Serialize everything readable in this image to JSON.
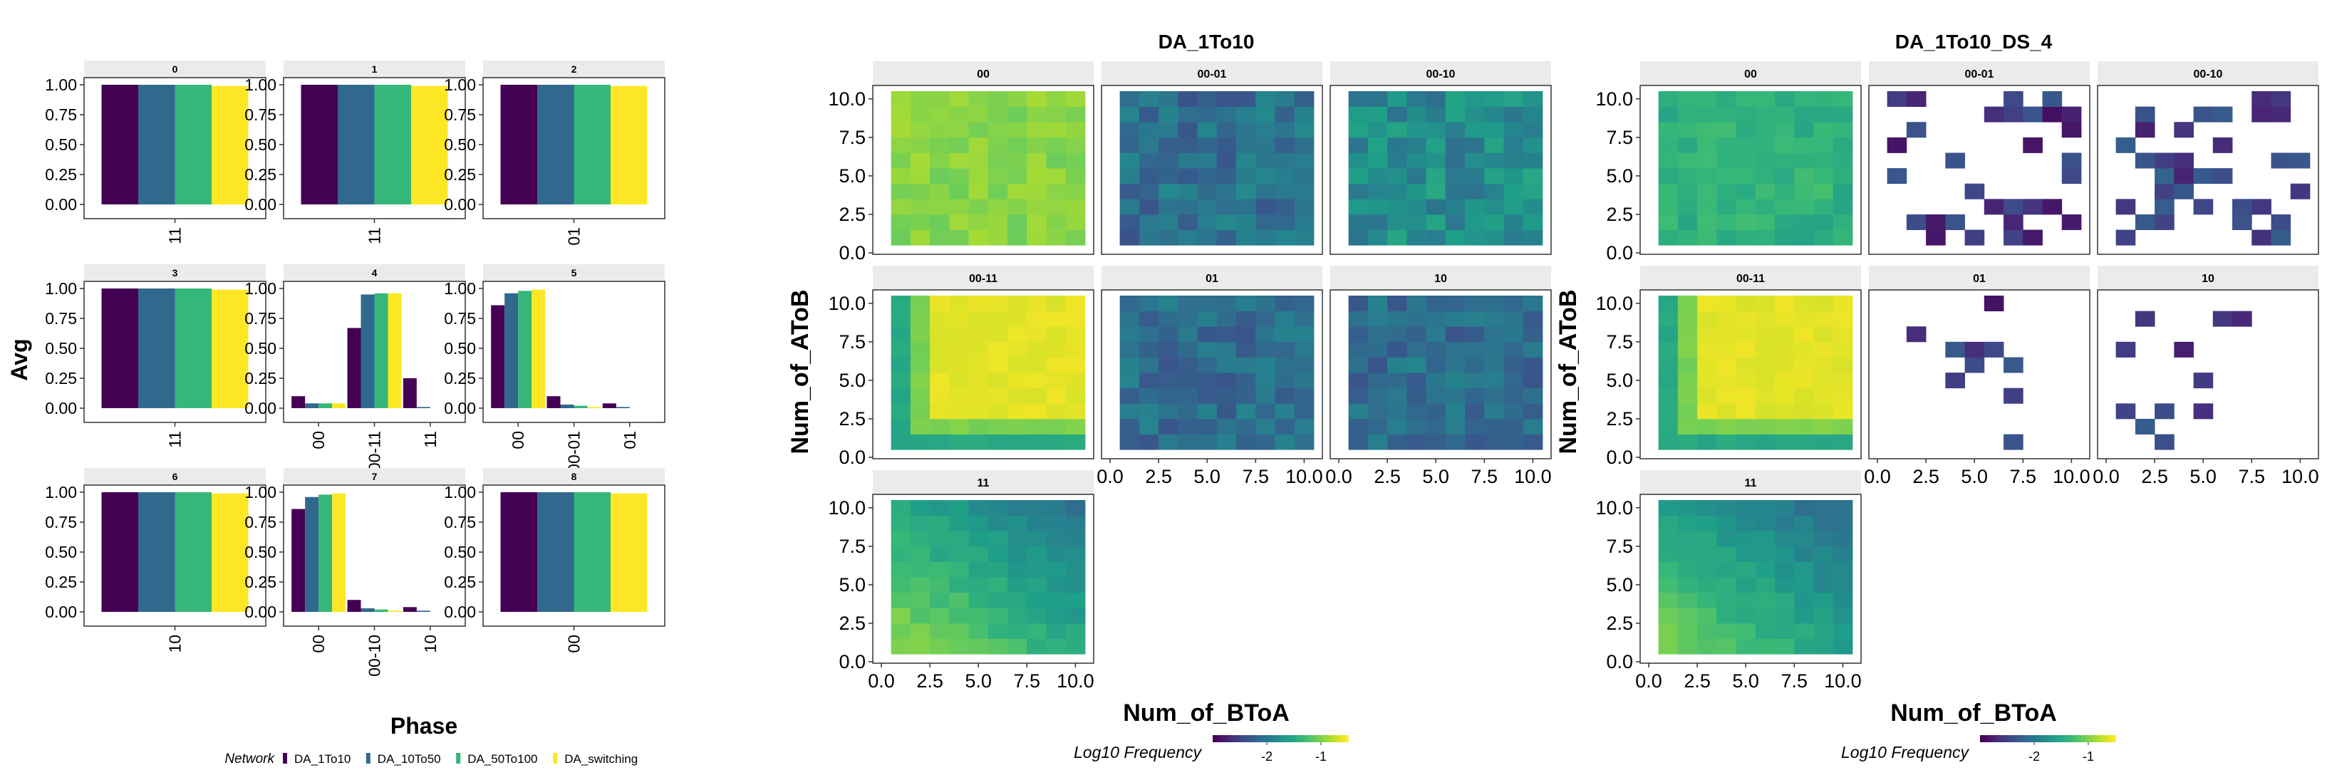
{
  "colors": {
    "DA_1To10": "#440154",
    "DA_10To50": "#31688E",
    "DA_50To100": "#35B779",
    "DA_switching": "#FDE725",
    "strip": "#EBEBEB",
    "panel_border": "#333333"
  },
  "chart_data": [
    {
      "type": "bar",
      "title": "",
      "xlabel": "Phase",
      "ylabel": "Avg",
      "ylim": [
        0,
        1
      ],
      "y_ticks": [
        "0.00",
        "0.25",
        "0.50",
        "0.75",
        "1.00"
      ],
      "legend": {
        "title": "Network",
        "placement": "bottom",
        "entries": [
          "DA_1To10",
          "DA_10To50",
          "DA_50To100",
          "DA_switching"
        ]
      },
      "facets": [
        {
          "label": "0",
          "categories": [
            "11"
          ],
          "series": [
            {
              "name": "DA_1To10",
              "values": [
                1.0
              ]
            },
            {
              "name": "DA_10To50",
              "values": [
                1.0
              ]
            },
            {
              "name": "DA_50To100",
              "values": [
                1.0
              ]
            },
            {
              "name": "DA_switching",
              "values": [
                0.99
              ]
            }
          ]
        },
        {
          "label": "1",
          "categories": [
            "11"
          ],
          "series": [
            {
              "name": "DA_1To10",
              "values": [
                1.0
              ]
            },
            {
              "name": "DA_10To50",
              "values": [
                1.0
              ]
            },
            {
              "name": "DA_50To100",
              "values": [
                1.0
              ]
            },
            {
              "name": "DA_switching",
              "values": [
                0.99
              ]
            }
          ]
        },
        {
          "label": "2",
          "categories": [
            "01"
          ],
          "series": [
            {
              "name": "DA_1To10",
              "values": [
                1.0
              ]
            },
            {
              "name": "DA_10To50",
              "values": [
                1.0
              ]
            },
            {
              "name": "DA_50To100",
              "values": [
                1.0
              ]
            },
            {
              "name": "DA_switching",
              "values": [
                0.99
              ]
            }
          ]
        },
        {
          "label": "3",
          "categories": [
            "11"
          ],
          "series": [
            {
              "name": "DA_1To10",
              "values": [
                1.0
              ]
            },
            {
              "name": "DA_10To50",
              "values": [
                1.0
              ]
            },
            {
              "name": "DA_50To100",
              "values": [
                1.0
              ]
            },
            {
              "name": "DA_switching",
              "values": [
                0.99
              ]
            }
          ]
        },
        {
          "label": "4",
          "categories": [
            "00",
            "00-11",
            "11"
          ],
          "series": [
            {
              "name": "DA_1To10",
              "values": [
                0.1,
                0.67,
                0.25
              ]
            },
            {
              "name": "DA_10To50",
              "values": [
                0.04,
                0.95,
                0.01
              ]
            },
            {
              "name": "DA_50To100",
              "values": [
                0.04,
                0.96,
                0.0
              ]
            },
            {
              "name": "DA_switching",
              "values": [
                0.04,
                0.96,
                0.0
              ]
            }
          ]
        },
        {
          "label": "5",
          "categories": [
            "00",
            "00-01",
            "01"
          ],
          "series": [
            {
              "name": "DA_1To10",
              "values": [
                0.86,
                0.1,
                0.04
              ]
            },
            {
              "name": "DA_10To50",
              "values": [
                0.96,
                0.03,
                0.01
              ]
            },
            {
              "name": "DA_50To100",
              "values": [
                0.98,
                0.02,
                0.0
              ]
            },
            {
              "name": "DA_switching",
              "values": [
                0.99,
                0.01,
                0.0
              ]
            }
          ]
        },
        {
          "label": "6",
          "categories": [
            "10"
          ],
          "series": [
            {
              "name": "DA_1To10",
              "values": [
                1.0
              ]
            },
            {
              "name": "DA_10To50",
              "values": [
                1.0
              ]
            },
            {
              "name": "DA_50To100",
              "values": [
                1.0
              ]
            },
            {
              "name": "DA_switching",
              "values": [
                0.99
              ]
            }
          ]
        },
        {
          "label": "7",
          "categories": [
            "00",
            "00-10",
            "10"
          ],
          "series": [
            {
              "name": "DA_1To10",
              "values": [
                0.86,
                0.1,
                0.04
              ]
            },
            {
              "name": "DA_10To50",
              "values": [
                0.96,
                0.03,
                0.01
              ]
            },
            {
              "name": "DA_50To100",
              "values": [
                0.98,
                0.02,
                0.0
              ]
            },
            {
              "name": "DA_switching",
              "values": [
                0.99,
                0.01,
                0.0
              ]
            }
          ]
        },
        {
          "label": "8",
          "categories": [
            "00"
          ],
          "series": [
            {
              "name": "DA_1To10",
              "values": [
                1.0
              ]
            },
            {
              "name": "DA_10To50",
              "values": [
                1.0
              ]
            },
            {
              "name": "DA_50To100",
              "values": [
                1.0
              ]
            },
            {
              "name": "DA_switching",
              "values": [
                0.99
              ]
            }
          ]
        }
      ]
    },
    {
      "type": "heatmap",
      "title": "DA_1To10",
      "xlabel": "Num_of_BToA",
      "ylabel": "Num_of_AToB",
      "xlim": [
        0,
        10.5
      ],
      "ylim": [
        0,
        10.5
      ],
      "x_ticks": [
        "0.0",
        "2.5",
        "5.0",
        "7.5",
        "10.0"
      ],
      "y_ticks": [
        "0.0",
        "2.5",
        "5.0",
        "7.5",
        "10.0"
      ],
      "grid_cells": "x = 1..10, y = 1..10",
      "colorbar": {
        "title": "Log10 Frequency",
        "ticks": [
          "-2",
          "-1"
        ],
        "range": [
          -3,
          -0.5
        ],
        "palette": "viridis"
      },
      "facets": [
        {
          "label": "00",
          "pattern": "flat",
          "value": -0.95,
          "noise": 0.12
        },
        {
          "label": "00-01",
          "pattern": "flat",
          "value": -2.1,
          "noise": 0.3
        },
        {
          "label": "00-10",
          "pattern": "flat",
          "value": -1.8,
          "noise": 0.3
        },
        {
          "label": "00-11",
          "pattern": "corner-high",
          "value": -0.6,
          "noise": 0.05
        },
        {
          "label": "01",
          "pattern": "flat",
          "value": -2.1,
          "noise": 0.25
        },
        {
          "label": "10",
          "pattern": "flat",
          "value": -2.1,
          "noise": 0.25
        },
        {
          "label": "11",
          "pattern": "corner-low",
          "value": -1.3,
          "noise": 0.1
        }
      ]
    },
    {
      "type": "heatmap",
      "title": "DA_1To10_DS_4",
      "xlabel": "Num_of_BToA",
      "ylabel": "Num_of_AToB",
      "xlim": [
        0,
        10.5
      ],
      "ylim": [
        0,
        10.5
      ],
      "x_ticks": [
        "0.0",
        "2.5",
        "5.0",
        "7.5",
        "10.0"
      ],
      "y_ticks": [
        "0.0",
        "2.5",
        "5.0",
        "7.5",
        "10.0"
      ],
      "grid_cells": "x = 1..10, y = 1..10",
      "colorbar": {
        "title": "Log10 Frequency",
        "ticks": [
          "-2",
          "-1"
        ],
        "range": [
          -3,
          -0.5
        ],
        "palette": "viridis"
      },
      "facets": [
        {
          "label": "00",
          "pattern": "flat",
          "value": -1.4,
          "noise": 0.15
        },
        {
          "label": "00-01",
          "pattern": "sparse",
          "value": -2.6,
          "noise": 0.3
        },
        {
          "label": "00-10",
          "pattern": "sparse",
          "value": -2.5,
          "noise": 0.3
        },
        {
          "label": "00-11",
          "pattern": "corner-high",
          "value": -0.6,
          "noise": 0.05
        },
        {
          "label": "01",
          "pattern": "very-sparse",
          "value": -2.6,
          "noise": 0.3
        },
        {
          "label": "10",
          "pattern": "very-sparse",
          "value": -2.5,
          "noise": 0.3
        },
        {
          "label": "11",
          "pattern": "corner-low",
          "value": -1.4,
          "noise": 0.1
        }
      ]
    }
  ]
}
